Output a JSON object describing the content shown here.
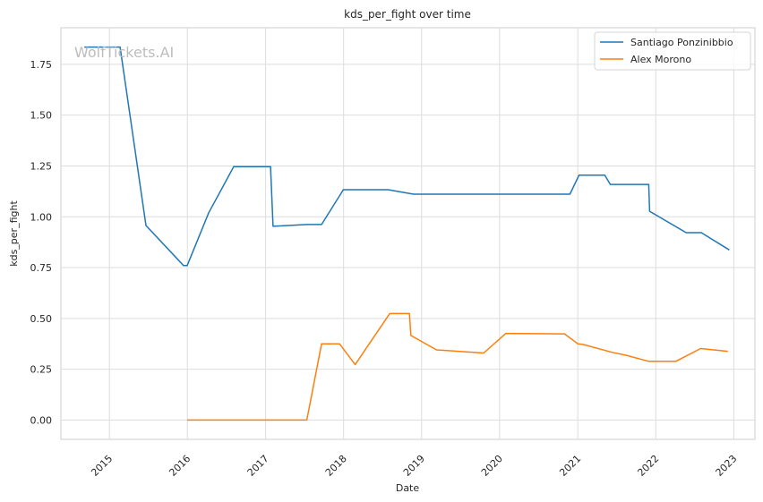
{
  "chart_data": {
    "type": "line",
    "title": "kds_per_fight over time",
    "xlabel": "Date",
    "ylabel": "kds_per_fight",
    "xlim": [
      "2014-05-19",
      "2023-04-10"
    ],
    "ylim": [
      -0.095,
      1.93
    ],
    "x_ticks": [
      "2015",
      "2016",
      "2017",
      "2018",
      "2019",
      "2020",
      "2021",
      "2022",
      "2023"
    ],
    "y_ticks": [
      "0.00",
      "0.25",
      "0.50",
      "0.75",
      "1.00",
      "1.25",
      "1.50",
      "1.75"
    ],
    "grid": true,
    "legend_position": "top-right",
    "watermark": "WolfTickets.AI",
    "series": [
      {
        "name": "Santiago Ponzinibbio",
        "color": "#1f77b4",
        "points": [
          [
            "2014-09-06",
            1.835
          ],
          [
            "2015-02-20",
            1.835
          ],
          [
            "2015-06-21",
            0.957
          ],
          [
            "2015-12-14",
            0.76
          ],
          [
            "2015-12-31",
            0.76
          ],
          [
            "2016-04-10",
            1.02
          ],
          [
            "2016-08-05",
            1.247
          ],
          [
            "2017-01-24",
            1.247
          ],
          [
            "2017-02-05",
            0.953
          ],
          [
            "2017-07-15",
            0.962
          ],
          [
            "2017-09-20",
            0.962
          ],
          [
            "2017-12-31",
            1.133
          ],
          [
            "2018-07-28",
            1.133
          ],
          [
            "2018-11-25",
            1.111
          ],
          [
            "2019-06-01",
            1.111
          ],
          [
            "2020-06-01",
            1.111
          ],
          [
            "2020-11-25",
            1.111
          ],
          [
            "2021-01-07",
            1.205
          ],
          [
            "2021-05-07",
            1.205
          ],
          [
            "2021-06-02",
            1.159
          ],
          [
            "2021-06-25",
            1.159
          ],
          [
            "2021-11-29",
            1.159
          ],
          [
            "2021-12-03",
            1.027
          ],
          [
            "2022-05-23",
            0.922
          ],
          [
            "2022-08-02",
            0.922
          ],
          [
            "2022-12-11",
            0.837
          ]
        ]
      },
      {
        "name": "Alex Morono",
        "color": "#ff7f0e",
        "points": [
          [
            "2015-12-31",
            0.0
          ],
          [
            "2017-07-13",
            0.0
          ],
          [
            "2017-09-20",
            0.375
          ],
          [
            "2017-12-13",
            0.375
          ],
          [
            "2018-02-24",
            0.273
          ],
          [
            "2018-08-05",
            0.524
          ],
          [
            "2018-10-31",
            0.524
          ],
          [
            "2018-11-05",
            0.524
          ],
          [
            "2018-11-12",
            0.416
          ],
          [
            "2019-03-12",
            0.345
          ],
          [
            "2019-10-19",
            0.33
          ],
          [
            "2020-01-30",
            0.426
          ],
          [
            "2020-10-31",
            0.424
          ],
          [
            "2021-01-01",
            0.375
          ],
          [
            "2021-01-25",
            0.372
          ],
          [
            "2021-06-12",
            0.333
          ],
          [
            "2021-08-15",
            0.319
          ],
          [
            "2021-11-29",
            0.289
          ],
          [
            "2022-04-05",
            0.289
          ],
          [
            "2022-07-30",
            0.352
          ],
          [
            "2022-12-04",
            0.338
          ]
        ]
      }
    ]
  }
}
